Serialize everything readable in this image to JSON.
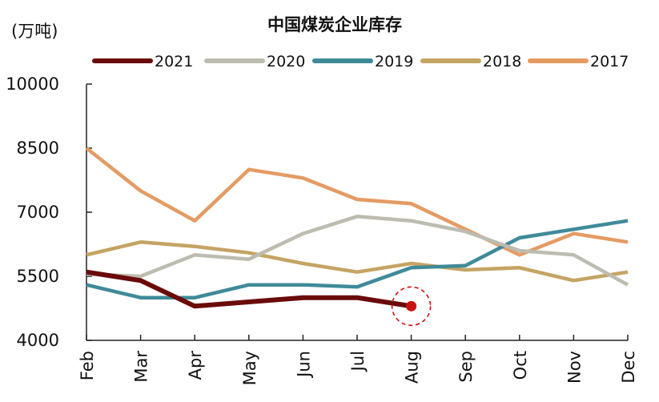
{
  "chart_data": {
    "type": "line",
    "title": "中国煤炭企业库存",
    "ylabel": "(万吨)",
    "xlabel": "",
    "categories": [
      "Feb",
      "Mar",
      "Apr",
      "May",
      "Jun",
      "Jul",
      "Aug",
      "Sep",
      "Oct",
      "Nov",
      "Dec"
    ],
    "ylim": [
      4000,
      10000
    ],
    "yticks": [
      4000,
      5500,
      7000,
      8500,
      10000
    ],
    "grid": false,
    "legend": "top",
    "series": [
      {
        "name": "2021",
        "color": "#6b0a0a",
        "values": [
          5600,
          5400,
          4800,
          4900,
          5000,
          5000,
          4800,
          null,
          null,
          null,
          null
        ]
      },
      {
        "name": "2020",
        "color": "#bdbcb0",
        "values": [
          5550,
          5500,
          6000,
          5900,
          6500,
          6900,
          6800,
          6550,
          6100,
          6000,
          5300
        ]
      },
      {
        "name": "2019",
        "color": "#3f8a99",
        "values": [
          5300,
          5000,
          5000,
          5300,
          5300,
          5250,
          5700,
          5750,
          6400,
          6600,
          6800
        ]
      },
      {
        "name": "2018",
        "color": "#c4a463",
        "values": [
          6000,
          6300,
          6200,
          6050,
          5800,
          5600,
          5800,
          5650,
          5700,
          5400,
          5600
        ]
      },
      {
        "name": "2017",
        "color": "#e49b63",
        "values": [
          8500,
          7500,
          6800,
          8000,
          7800,
          7300,
          7200,
          6600,
          6000,
          6500,
          6300
        ]
      }
    ],
    "highlight": {
      "series": "2021",
      "category": "Aug",
      "value": 4800,
      "color": "#cc1111"
    }
  }
}
